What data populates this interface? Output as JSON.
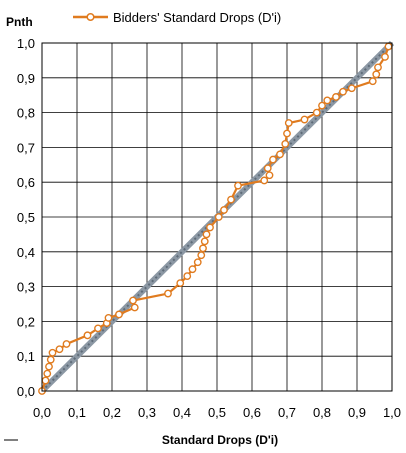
{
  "chart_data": {
    "type": "line",
    "xlabel": "Standard Drops (D'i)",
    "ylabel": "Pnth",
    "xlim": [
      0,
      1
    ],
    "ylim": [
      0,
      1
    ],
    "xticks": [
      "0,0",
      "0,1",
      "0,2",
      "0,3",
      "0,4",
      "0,5",
      "0,6",
      "0,7",
      "0,8",
      "0,9",
      "1,0"
    ],
    "yticks": [
      "0,0",
      "0,1",
      "0,2",
      "0,3",
      "0,4",
      "0,5",
      "0,6",
      "0,7",
      "0,8",
      "0,9",
      "1,0"
    ],
    "grid": true,
    "legend_position": "top",
    "colors": {
      "series": "#E07B1F",
      "reference": "#8C98A4",
      "grid": "#000000"
    },
    "series": [
      {
        "name": "Bidders' Standard Drops (D'i)",
        "x": [
          0.0,
          0.01,
          0.015,
          0.02,
          0.025,
          0.03,
          0.05,
          0.07,
          0.13,
          0.16,
          0.185,
          0.19,
          0.22,
          0.265,
          0.26,
          0.36,
          0.395,
          0.415,
          0.43,
          0.445,
          0.455,
          0.46,
          0.465,
          0.47,
          0.48,
          0.505,
          0.52,
          0.54,
          0.56,
          0.635,
          0.65,
          0.645,
          0.66,
          0.68,
          0.695,
          0.7,
          0.705,
          0.75,
          0.785,
          0.8,
          0.815,
          0.84,
          0.86,
          0.885,
          0.945,
          0.955,
          0.96,
          0.98,
          0.99
        ],
        "y": [
          0.0,
          0.03,
          0.05,
          0.07,
          0.09,
          0.11,
          0.12,
          0.135,
          0.16,
          0.18,
          0.195,
          0.21,
          0.22,
          0.24,
          0.26,
          0.28,
          0.31,
          0.33,
          0.35,
          0.37,
          0.39,
          0.41,
          0.43,
          0.45,
          0.47,
          0.5,
          0.52,
          0.55,
          0.59,
          0.605,
          0.62,
          0.64,
          0.665,
          0.68,
          0.71,
          0.74,
          0.77,
          0.78,
          0.8,
          0.82,
          0.835,
          0.845,
          0.86,
          0.87,
          0.89,
          0.91,
          0.93,
          0.96,
          0.99
        ]
      }
    ]
  }
}
